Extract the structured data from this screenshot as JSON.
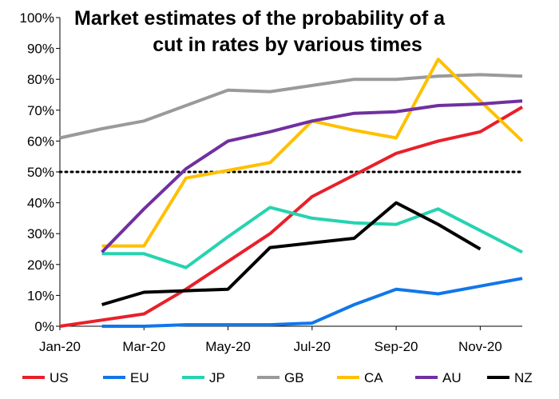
{
  "chart_data": {
    "type": "line",
    "title_lines": [
      "Market estimates of the probability of a",
      "cut in rates by various times"
    ],
    "xlabel": "",
    "ylabel": "",
    "x": [
      "Jan-20",
      "Feb-20",
      "Mar-20",
      "Apr-20",
      "May-20",
      "Jun-20",
      "Jul-20",
      "Aug-20",
      "Sep-20",
      "Oct-20",
      "Nov-20",
      "Dec-20"
    ],
    "x_tick_labels": [
      "Jan-20",
      "Mar-20",
      "May-20",
      "Jul-20",
      "Sep-20",
      "Nov-20"
    ],
    "y_tick_labels": [
      "0%",
      "10%",
      "20%",
      "30%",
      "40%",
      "50%",
      "60%",
      "70%",
      "80%",
      "90%",
      "100%"
    ],
    "ylim": [
      0,
      100
    ],
    "y_unit": "%",
    "reference_line": {
      "y": 50,
      "style": "dotted",
      "color": "#000000"
    },
    "grid": false,
    "legend_position": "bottom",
    "series": [
      {
        "name": "US",
        "color": "#e8202a",
        "values": [
          0,
          2,
          4,
          12,
          21,
          30,
          42,
          49,
          56,
          60,
          63,
          71
        ]
      },
      {
        "name": "EU",
        "color": "#1177e8",
        "values": [
          null,
          0,
          0,
          0.5,
          0.5,
          0.5,
          1,
          7,
          12,
          10.5,
          13,
          15.5
        ]
      },
      {
        "name": "JP",
        "color": "#26d3b0",
        "values": [
          null,
          23.5,
          23.5,
          19,
          29,
          38.5,
          35,
          33.5,
          33,
          38,
          31,
          24
        ]
      },
      {
        "name": "GB",
        "color": "#9a9a9a",
        "values": [
          61,
          64,
          66.5,
          71.5,
          76.5,
          76,
          78,
          80,
          80,
          81,
          81.5,
          81
        ]
      },
      {
        "name": "CA",
        "color": "#ffc000",
        "values": [
          null,
          26,
          26,
          48,
          50.5,
          53,
          66.5,
          63.5,
          61,
          86.5,
          73,
          60
        ]
      },
      {
        "name": "AU",
        "color": "#7030a0",
        "values": [
          null,
          24,
          38,
          51,
          60,
          63,
          66.5,
          69,
          69.5,
          71.5,
          72,
          73
        ]
      },
      {
        "name": "NZ",
        "color": "#000000",
        "values": [
          null,
          7,
          11,
          11.5,
          12,
          25.5,
          27,
          28.5,
          40,
          33,
          25,
          null
        ]
      }
    ]
  }
}
